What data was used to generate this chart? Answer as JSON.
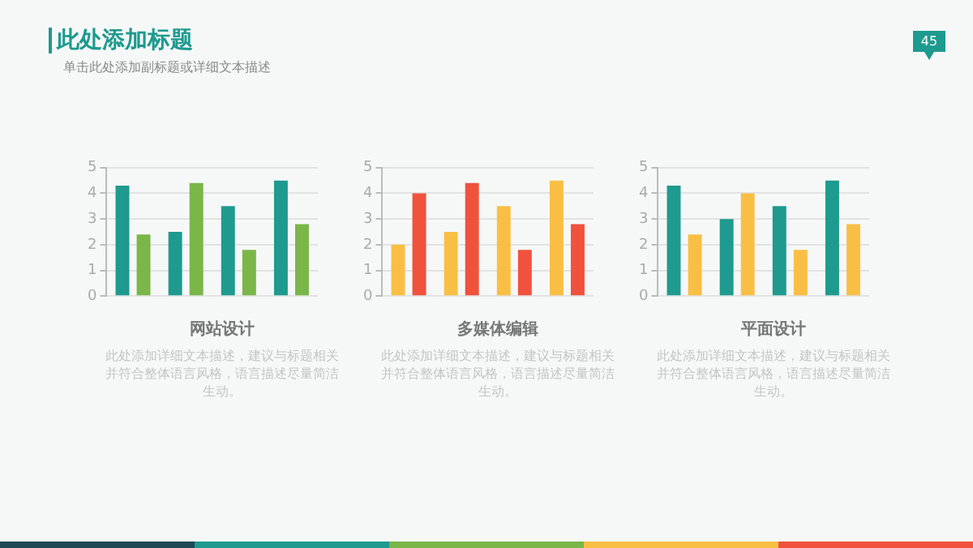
{
  "chart_data": [
    {
      "type": "other",
      "title": "此处添加标题",
      "subtitle": "单击此处添加副标题或详细文本描述",
      "annotations": [
        "45"
      ]
    },
    {
      "type": "bar",
      "title": "网站设计",
      "annotations": [
        "此处添加详细文本描述，建议与标题相关并符合整体语言风格，语言描述尽量简洁生动。"
      ],
      "categories": [
        null,
        null,
        null,
        null
      ],
      "series": [
        {
          "color": "#1e9a8f",
          "values": [
            4.3,
            2.5,
            3.5,
            4.5
          ]
        },
        {
          "color": "#7ab648",
          "values": [
            2.4,
            4.4,
            1.8,
            2.8
          ]
        }
      ],
      "ylim": [
        0,
        5
      ],
      "yticks": [
        0,
        1,
        2,
        3,
        4,
        5
      ],
      "grid": "y"
    },
    {
      "type": "bar",
      "title": "多媒体编辑",
      "annotations": [
        "此处添加详细文本描述，建议与标题相关并符合整体语言风格，语言描述尽量简洁生动。"
      ],
      "categories": [
        null,
        null,
        null,
        null
      ],
      "series": [
        {
          "color": "#f9bf45",
          "values": [
            2,
            2.5,
            3.5,
            4.5
          ]
        },
        {
          "color": "#f0523d",
          "values": [
            4,
            4.4,
            1.8,
            2.8
          ]
        }
      ],
      "ylim": [
        0,
        5
      ],
      "yticks": [
        0,
        1,
        2,
        3,
        4,
        5
      ],
      "grid": "y"
    },
    {
      "type": "bar",
      "title": "平面设计",
      "annotations": [
        "此处添加详细文本描述，建议与标题相关并符合整体语言风格，语言描述尽量简洁生动。"
      ],
      "categories": [
        null,
        null,
        null,
        null
      ],
      "series": [
        {
          "color": "#1e9a8f",
          "values": [
            4.3,
            3,
            3.5,
            4.5
          ]
        },
        {
          "color": "#f9bf45",
          "values": [
            2.4,
            4,
            1.8,
            2.8
          ]
        }
      ],
      "ylim": [
        0,
        5
      ],
      "yticks": [
        0,
        1,
        2,
        3,
        4,
        5
      ],
      "grid": "y"
    }
  ]
}
